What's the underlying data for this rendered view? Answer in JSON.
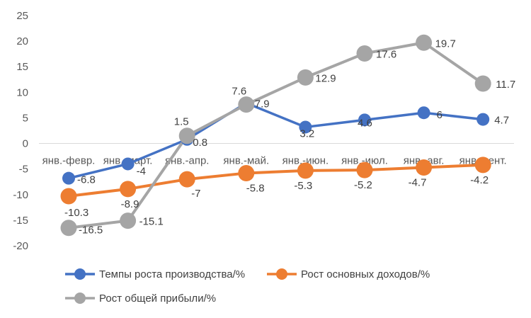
{
  "chart_data": {
    "type": "line",
    "title": "",
    "xlabel": "",
    "ylabel": "",
    "ylim": [
      -20,
      25
    ],
    "y_ticks": [
      25,
      20,
      15,
      10,
      5,
      0,
      -5,
      -10,
      -15,
      -20
    ],
    "grid": false,
    "legend_position": "bottom",
    "categories": [
      "янв.-февр.",
      "янв.-март.",
      "янв.-апр.",
      "янв.-май.",
      "янв.-июн.",
      "янв.-июл.",
      "янв.-авг.",
      "янв.-сент."
    ],
    "series": [
      {
        "name": "Темпы роста производства/%",
        "color": "#4472C4",
        "values": [
          -6.8,
          -4,
          0.8,
          7.9,
          3.2,
          4.6,
          6,
          4.7
        ],
        "labels": [
          "-6.8",
          "-4",
          "0.8",
          "7.9",
          "3.2",
          "4.6",
          "6",
          "4.7"
        ]
      },
      {
        "name": "Рост основных доходов/%",
        "color": "#ED7D31",
        "values": [
          -10.3,
          -8.9,
          -7,
          -5.8,
          -5.3,
          -5.2,
          -4.7,
          -4.2
        ],
        "labels": [
          "-10.3",
          "-8.9",
          "-7",
          "-5.8",
          "-5.3",
          "-5.2",
          "-4.7",
          "-4.2"
        ]
      },
      {
        "name": "Рост общей прибыли/%",
        "color": "#A5A5A5",
        "values": [
          -16.5,
          -15.1,
          1.5,
          7.6,
          12.9,
          17.6,
          19.7,
          11.7
        ],
        "labels": [
          "-16.5",
          "-15.1",
          "1.5",
          "7.6",
          "12.9",
          "17.6",
          "19.7",
          "11.7"
        ]
      }
    ]
  }
}
